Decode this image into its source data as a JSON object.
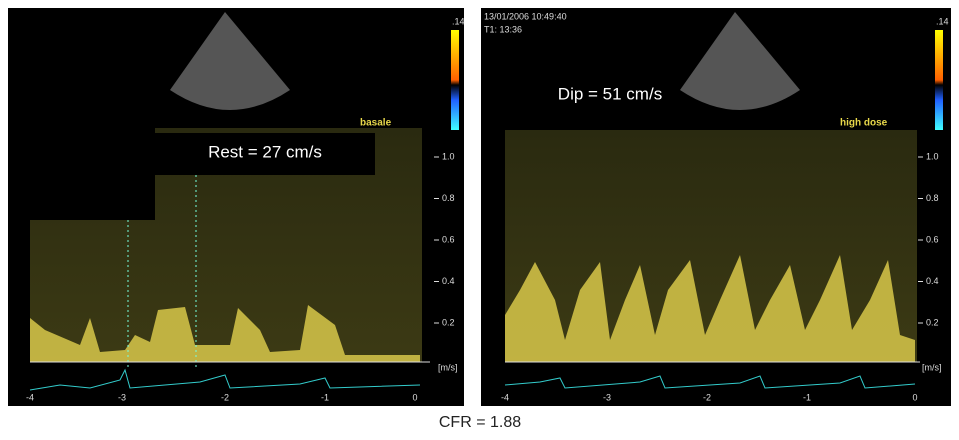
{
  "panels": [
    {
      "label": "Rest = 27 cm/s",
      "tag": "basale",
      "scale_top": ".14",
      "yticks": [
        "1.0",
        "0.8",
        "0.6",
        "0.4",
        "0.2"
      ],
      "unit": "[m/s]",
      "xticks": [
        "-4",
        "-3",
        "-2",
        "-1",
        "0"
      ]
    },
    {
      "label": "Dip = 51 cm/s",
      "tag": "high dose",
      "scale_top": ".14",
      "timestamp": "13/01/2006 10:49:40",
      "timer": "T1: 13:36",
      "yticks": [
        "1.0",
        "0.8",
        "0.6",
        "0.4",
        "0.2"
      ],
      "unit": "[m/s]",
      "xticks": [
        "-4",
        "-3",
        "-2",
        "-1",
        "0"
      ]
    }
  ],
  "caption": "CFR = 1.88"
}
